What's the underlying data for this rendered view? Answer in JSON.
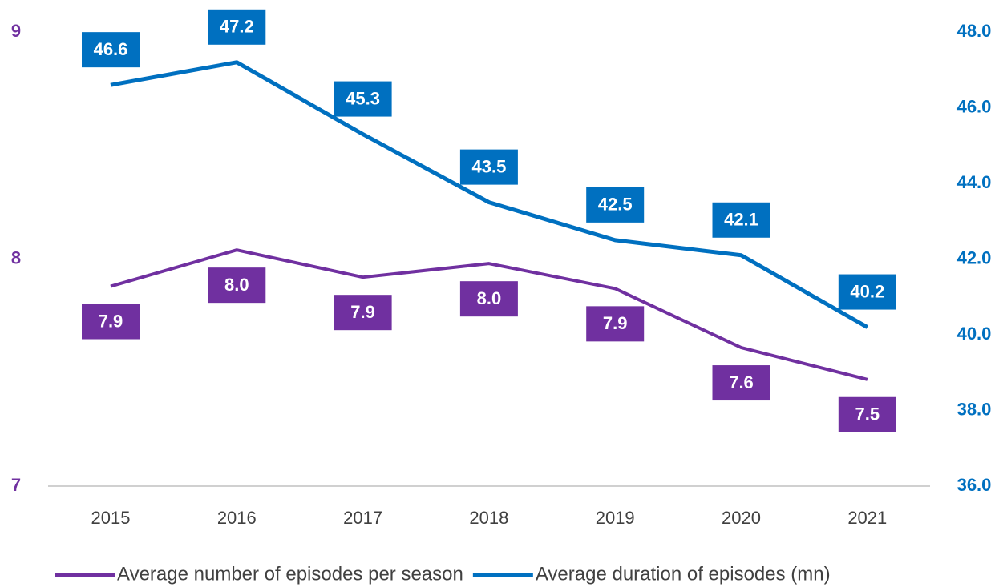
{
  "chart_data": {
    "type": "line",
    "categories": [
      "2015",
      "2016",
      "2017",
      "2018",
      "2019",
      "2020",
      "2021"
    ],
    "series": [
      {
        "name": "Average number of episodes per season",
        "color": "#7030a0",
        "axis": "y",
        "values": [
          7.88,
          8.04,
          7.92,
          7.98,
          7.87,
          7.61,
          7.47
        ],
        "value_labels": [
          "7.9",
          "8.0",
          "7.9",
          "8.0",
          "7.9",
          "7.6",
          "7.5"
        ]
      },
      {
        "name": "Average duration of episodes (mn)",
        "color": "#0070c0",
        "axis": "y2",
        "values": [
          46.6,
          47.2,
          45.3,
          43.5,
          42.5,
          42.1,
          40.2
        ]
      }
    ],
    "ylim": [
      7,
      9
    ],
    "yticks": [
      7,
      8,
      9
    ],
    "y2lim": [
      36,
      48
    ],
    "y2ticks": [
      {
        "value": 36,
        "label": "36.0"
      },
      {
        "value": 38,
        "label": "38.0"
      },
      {
        "value": 40,
        "label": "40.0"
      },
      {
        "value": 42,
        "label": "42.0"
      },
      {
        "value": 44,
        "label": "44.0"
      },
      {
        "value": 46,
        "label": "46.0"
      },
      {
        "value": 48,
        "label": "48.0"
      }
    ],
    "grid": false
  }
}
